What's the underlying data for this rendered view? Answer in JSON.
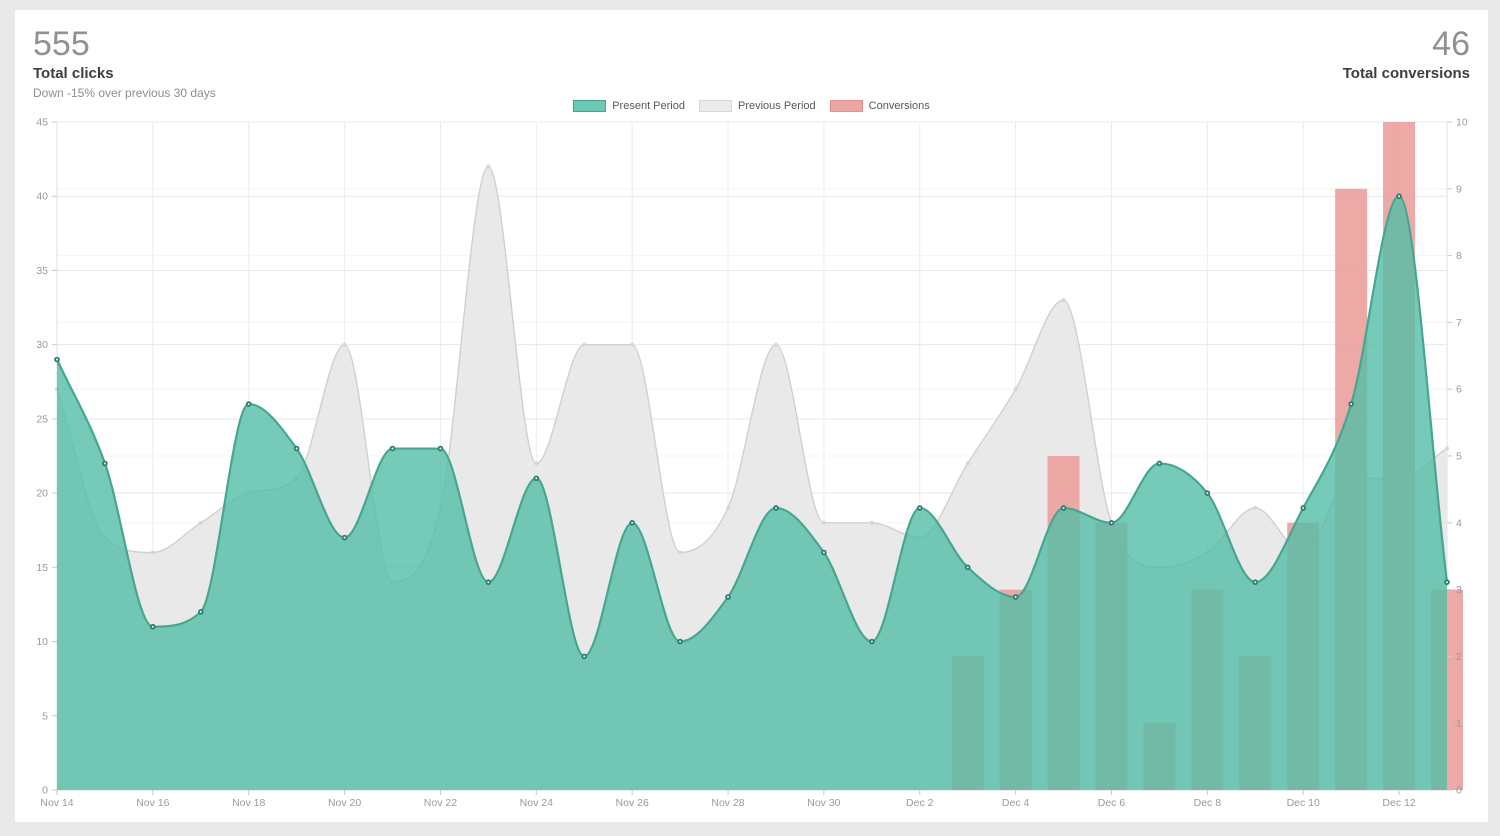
{
  "page": {
    "background": "#e9e9e9",
    "card_background": "#ffffff"
  },
  "header": {
    "left": {
      "value": "555",
      "label": "Total clicks",
      "subtitle": "Down -15% over previous 30 days"
    },
    "right": {
      "value": "46",
      "label": "Total conversions"
    }
  },
  "legend": [
    {
      "label": "Present Period",
      "fill": "#6cc8b4",
      "border": "#47a391"
    },
    {
      "label": "Previous Period",
      "fill": "#ebebeb",
      "border": "#d9d9d9"
    },
    {
      "label": "Conversions",
      "fill": "#eba5a2",
      "border": "#e09390"
    }
  ],
  "chart_data": {
    "type": "area-line and bar combo, dual axis",
    "title": "",
    "xlabel": "",
    "ylabel_left": "clicks",
    "ylabel_right": "conversions",
    "grid": true,
    "legend_position": "top",
    "x": [
      "Nov 14",
      "Nov 15",
      "Nov 16",
      "Nov 17",
      "Nov 18",
      "Nov 19",
      "Nov 20",
      "Nov 21",
      "Nov 22",
      "Nov 23",
      "Nov 24",
      "Nov 25",
      "Nov 26",
      "Nov 27",
      "Nov 28",
      "Nov 29",
      "Nov 30",
      "Dec 1",
      "Dec 2",
      "Dec 3",
      "Dec 4",
      "Dec 5",
      "Dec 6",
      "Dec 7",
      "Dec 8",
      "Dec 9",
      "Dec 10",
      "Dec 11",
      "Dec 12",
      "Dec 13"
    ],
    "x_tick_every": 2,
    "left_axis": {
      "min": 0,
      "max": 45,
      "step": 5
    },
    "right_axis": {
      "min": 0,
      "max": 10,
      "step": 1
    },
    "series": [
      {
        "name": "Present Period",
        "type": "area",
        "axis": "left",
        "fill": "#54bda6",
        "fill_opacity": 0.8,
        "line": "#45a792",
        "dot": "#2a7c6d",
        "values": [
          29,
          22,
          11,
          12,
          26,
          23,
          17,
          23,
          23,
          14,
          21,
          9,
          18,
          10,
          13,
          19,
          16,
          10,
          19,
          15,
          13,
          19,
          18,
          22,
          20,
          14,
          19,
          26,
          40,
          14
        ]
      },
      {
        "name": "Previous Period",
        "type": "area",
        "axis": "left",
        "fill": "#e9e9e9",
        "fill_opacity": 1,
        "line": "#d0d0d0",
        "dot": "#d6d6d6",
        "values": [
          27,
          17,
          16,
          18,
          20,
          21,
          30,
          14,
          19,
          42,
          22,
          30,
          30,
          16,
          19,
          30,
          18,
          18,
          17,
          22,
          27,
          33,
          18,
          15,
          16,
          19,
          16,
          21,
          21,
          23
        ]
      },
      {
        "name": "Conversions",
        "type": "bar",
        "axis": "right",
        "fill": "#eba4a1",
        "fill_opacity": 0.95,
        "values": [
          null,
          null,
          null,
          null,
          null,
          null,
          null,
          null,
          null,
          null,
          null,
          null,
          null,
          null,
          null,
          null,
          null,
          null,
          null,
          2,
          3,
          5,
          4,
          1,
          3,
          2,
          4,
          9,
          10,
          3
        ]
      }
    ]
  }
}
